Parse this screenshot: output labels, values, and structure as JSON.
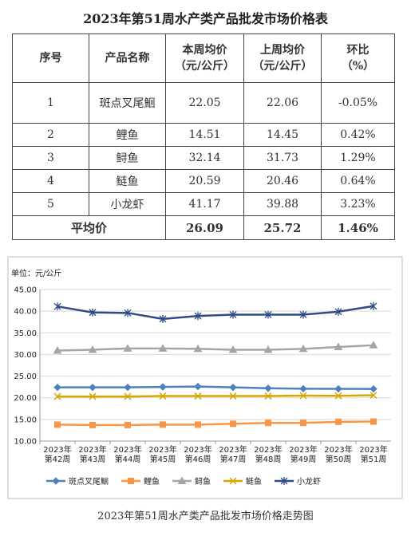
{
  "title": "2023年第51周水产类产品批发市场价格表",
  "table": {
    "header": [
      "序号",
      "产品名称",
      "本周均价\n（元/公斤）",
      "上周均价\n（元/公斤）",
      "环比\n（%）"
    ],
    "rows": [
      [
        "1",
        "斑点叉尾鮰",
        "22.05",
        "22.06",
        "-0.05%"
      ],
      [
        "2",
        "鲤鱼",
        "14.51",
        "14.45",
        "0.42%"
      ],
      [
        "3",
        "鲟鱼",
        "32.14",
        "31.73",
        "1.29%"
      ],
      [
        "4",
        "鲢鱼",
        "20.59",
        "20.46",
        "0.64%"
      ],
      [
        "5",
        "小龙虾",
        "41.17",
        "39.88",
        "3.23%"
      ]
    ],
    "average": [
      "平均价",
      "26.09",
      "25.72",
      "1.46%"
    ]
  },
  "chart_data": {
    "type": "line",
    "y_label": "单位：元/公斤",
    "categories": [
      "2023年第42周",
      "2023年第43周",
      "2023年第44周",
      "2023年第45周",
      "2023年第46周",
      "2023年第47周",
      "2023年第48周",
      "2023年第49周",
      "2023年第50周",
      "2023年第51周"
    ],
    "series": [
      {
        "name": "斑点叉尾鮰",
        "color": "#4f81bd",
        "marker": "diamond",
        "values": [
          22.4,
          22.4,
          22.4,
          22.5,
          22.6,
          22.4,
          22.2,
          22.1,
          22.06,
          22.05
        ]
      },
      {
        "name": "鲤鱼",
        "color": "#f79646",
        "marker": "square",
        "values": [
          13.8,
          13.7,
          13.7,
          13.8,
          13.8,
          14.0,
          14.2,
          14.2,
          14.45,
          14.51
        ]
      },
      {
        "name": "鲟鱼",
        "color": "#a5a5a5",
        "marker": "triangle",
        "values": [
          30.9,
          31.1,
          31.4,
          31.4,
          31.3,
          31.1,
          31.1,
          31.3,
          31.73,
          32.14
        ]
      },
      {
        "name": "鲢鱼",
        "color": "#d4a800",
        "marker": "x",
        "values": [
          20.3,
          20.3,
          20.3,
          20.4,
          20.4,
          20.4,
          20.4,
          20.5,
          20.46,
          20.59
        ]
      },
      {
        "name": "小龙虾",
        "color": "#2f4b87",
        "marker": "star",
        "values": [
          41.1,
          39.7,
          39.6,
          38.2,
          38.9,
          39.2,
          39.2,
          39.2,
          39.88,
          41.17
        ]
      }
    ],
    "ylim": [
      10,
      45
    ],
    "yticks": [
      {
        "value": 10,
        "label": "10.00"
      },
      {
        "value": 15,
        "label": "15.00"
      },
      {
        "value": 20,
        "label": "20.00"
      },
      {
        "value": 25,
        "label": "25.00"
      },
      {
        "value": 30,
        "label": "30.00"
      },
      {
        "value": 35,
        "label": "35.00"
      },
      {
        "value": 40,
        "label": "40.00"
      },
      {
        "value": 45,
        "label": "45.00"
      }
    ],
    "grid": true
  },
  "caption": "2023年第51周水产类产品批发市场价格走势图"
}
